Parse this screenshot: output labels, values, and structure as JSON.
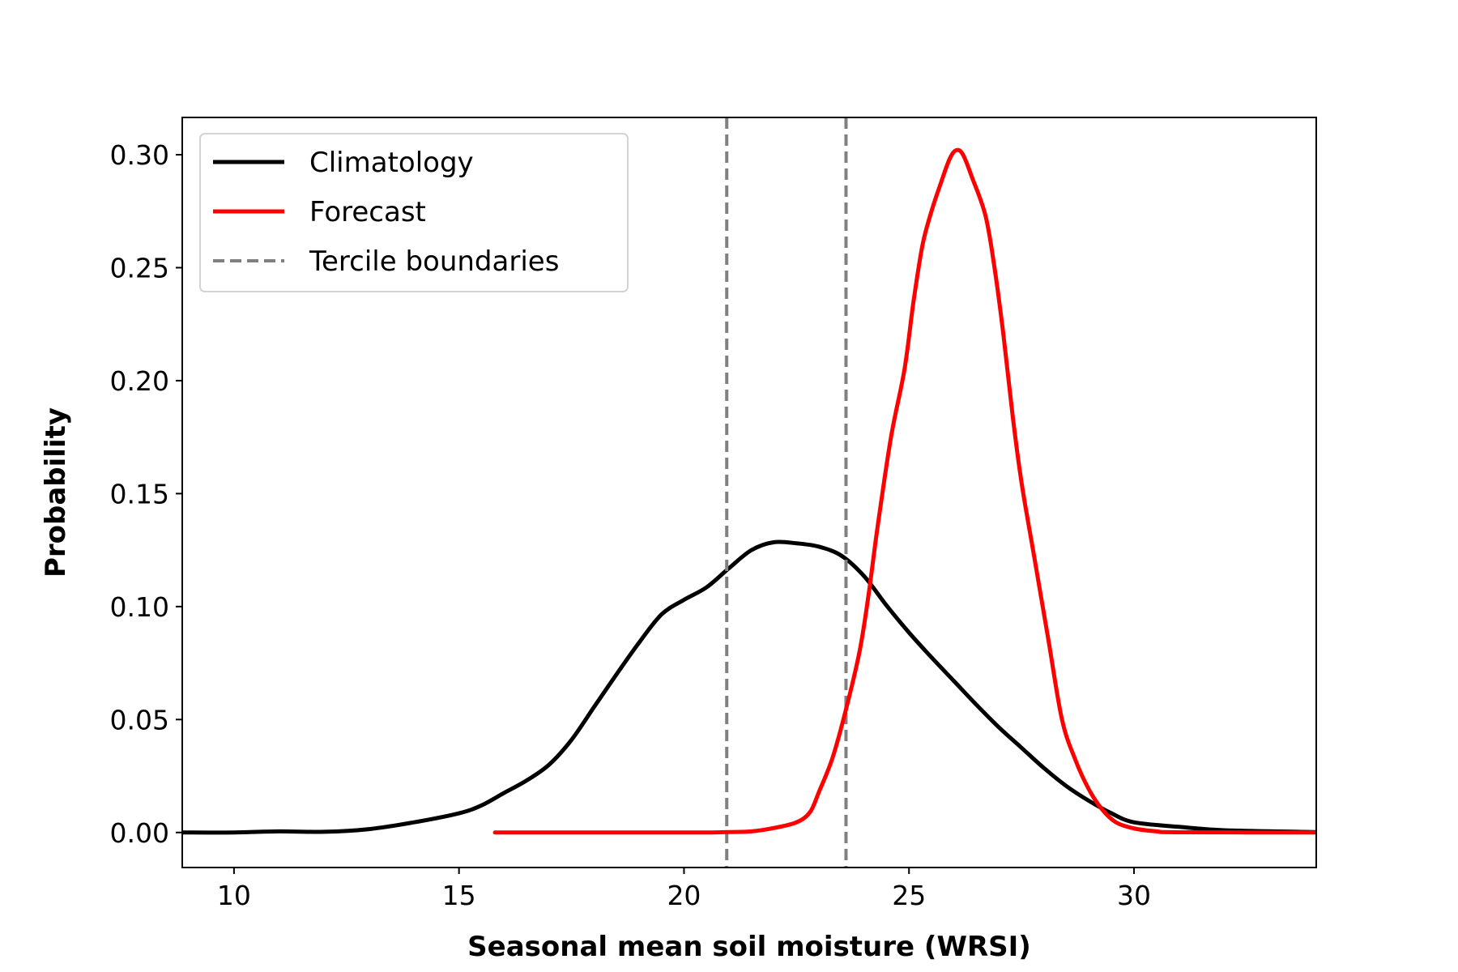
{
  "chart_data": {
    "type": "line",
    "xlabel": "Seasonal mean soil moisture (WRSI)",
    "ylabel": "Probability",
    "xlim": [
      8.85,
      34.05
    ],
    "ylim": [
      -0.0155,
      0.3165
    ],
    "xticks": [
      10,
      15,
      20,
      25,
      30
    ],
    "xtick_labels": [
      "10",
      "15",
      "20",
      "25",
      "30"
    ],
    "yticks": [
      0.0,
      0.05,
      0.1,
      0.15,
      0.2,
      0.25,
      0.3
    ],
    "ytick_labels": [
      "0.00",
      "0.05",
      "0.10",
      "0.15",
      "0.20",
      "0.25",
      "0.30"
    ],
    "grid": false,
    "legend_position": "upper-left",
    "series": [
      {
        "name": "Climatology",
        "color": "#000000",
        "style": "solid",
        "points": [
          [
            8.85,
            0.0
          ],
          [
            10,
            0.0
          ],
          [
            11,
            0.0005
          ],
          [
            12,
            0.0003
          ],
          [
            13,
            0.0015
          ],
          [
            14,
            0.0045
          ],
          [
            15,
            0.0085
          ],
          [
            15.5,
            0.012
          ],
          [
            16,
            0.0175
          ],
          [
            16.5,
            0.023
          ],
          [
            17,
            0.03
          ],
          [
            17.5,
            0.041
          ],
          [
            18,
            0.0555
          ],
          [
            18.5,
            0.07
          ],
          [
            19,
            0.084
          ],
          [
            19.5,
            0.0965
          ],
          [
            20,
            0.103
          ],
          [
            20.5,
            0.1085
          ],
          [
            21,
            0.117
          ],
          [
            21.5,
            0.125
          ],
          [
            22,
            0.1285
          ],
          [
            22.5,
            0.128
          ],
          [
            23,
            0.1265
          ],
          [
            23.5,
            0.1225
          ],
          [
            24,
            0.1135
          ],
          [
            24.5,
            0.1005
          ],
          [
            25,
            0.0885
          ],
          [
            25.5,
            0.0775
          ],
          [
            26,
            0.067
          ],
          [
            26.5,
            0.0565
          ],
          [
            27,
            0.0465
          ],
          [
            27.5,
            0.0375
          ],
          [
            28,
            0.0285
          ],
          [
            28.5,
            0.0205
          ],
          [
            29,
            0.014
          ],
          [
            29.5,
            0.0085
          ],
          [
            30,
            0.0045
          ],
          [
            31,
            0.0025
          ],
          [
            32,
            0.001
          ],
          [
            34.05,
            0.0002
          ]
        ]
      },
      {
        "name": "Forecast",
        "color": "#ff0000",
        "style": "solid",
        "points": [
          [
            15.8,
            0.0
          ],
          [
            17,
            0.0
          ],
          [
            18,
            0.0
          ],
          [
            19,
            0.0
          ],
          [
            20,
            0.0
          ],
          [
            20.5,
            0.0
          ],
          [
            21,
            0.0002
          ],
          [
            21.5,
            0.0005
          ],
          [
            22,
            0.002
          ],
          [
            22.5,
            0.0045
          ],
          [
            22.8,
            0.009
          ],
          [
            23,
            0.018
          ],
          [
            23.3,
            0.033
          ],
          [
            23.6,
            0.0545
          ],
          [
            23.9,
            0.08
          ],
          [
            24.1,
            0.105
          ],
          [
            24.3,
            0.135
          ],
          [
            24.6,
            0.175
          ],
          [
            24.9,
            0.205
          ],
          [
            25.1,
            0.235
          ],
          [
            25.3,
            0.26
          ],
          [
            25.5,
            0.275
          ],
          [
            25.7,
            0.287
          ],
          [
            25.9,
            0.298
          ],
          [
            26.05,
            0.302
          ],
          [
            26.2,
            0.3
          ],
          [
            26.4,
            0.29
          ],
          [
            26.7,
            0.273
          ],
          [
            26.9,
            0.25
          ],
          [
            27.1,
            0.22
          ],
          [
            27.3,
            0.185
          ],
          [
            27.5,
            0.155
          ],
          [
            27.8,
            0.12
          ],
          [
            28.1,
            0.085
          ],
          [
            28.4,
            0.05
          ],
          [
            28.7,
            0.032
          ],
          [
            29,
            0.019
          ],
          [
            29.3,
            0.01
          ],
          [
            29.6,
            0.0045
          ],
          [
            30,
            0.0018
          ],
          [
            30.5,
            0.0005
          ],
          [
            31,
            0.0001
          ],
          [
            34.05,
            0.0
          ]
        ]
      },
      {
        "name": "Tercile boundaries",
        "color": "#808080",
        "style": "dashed",
        "x": [
          20.95,
          23.6
        ]
      }
    ]
  }
}
